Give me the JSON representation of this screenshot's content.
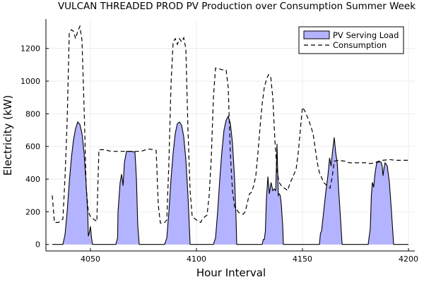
{
  "chart_data": {
    "type": "area",
    "title": "VULCAN THREADED PROD PV Production over Consumption Summer Week",
    "xlabel": "Hour Interval",
    "ylabel": "Electricity (kW)",
    "xlim": [
      4029,
      4203
    ],
    "ylim": [
      -40,
      1380
    ],
    "x_ticks": [
      4050,
      4100,
      4150,
      4200
    ],
    "y_ticks": [
      0,
      200,
      400,
      600,
      800,
      1000,
      1200
    ],
    "grid": true,
    "legend_position": "top-right",
    "series": [
      {
        "name": "PV Serving Load",
        "style": "filled-area",
        "fill_color": "#b3b3ff",
        "line_color": "#000000",
        "points": [
          [
            4032,
            0
          ],
          [
            4037,
            0
          ],
          [
            4038,
            60
          ],
          [
            4039,
            200
          ],
          [
            4040,
            380
          ],
          [
            4041,
            530
          ],
          [
            4042,
            640
          ],
          [
            4043,
            710
          ],
          [
            4044,
            750
          ],
          [
            4045,
            735
          ],
          [
            4046,
            680
          ],
          [
            4047,
            560
          ],
          [
            4048,
            360
          ],
          [
            4048.7,
            200
          ],
          [
            4049,
            50
          ],
          [
            4049.6,
            80
          ],
          [
            4050,
            110
          ],
          [
            4050.5,
            40
          ],
          [
            4051,
            0
          ],
          [
            4062,
            0
          ],
          [
            4062.8,
            40
          ],
          [
            4063,
            200
          ],
          [
            4064,
            380
          ],
          [
            4064.7,
            430
          ],
          [
            4065.4,
            360
          ],
          [
            4066,
            500
          ],
          [
            4067,
            570
          ],
          [
            4068,
            570
          ],
          [
            4069,
            570
          ],
          [
            4070,
            568
          ],
          [
            4071,
            565
          ],
          [
            4071.7,
            400
          ],
          [
            4072.3,
            120
          ],
          [
            4073,
            0
          ],
          [
            4085,
            0
          ],
          [
            4086,
            40
          ],
          [
            4087,
            200
          ],
          [
            4088,
            400
          ],
          [
            4089,
            560
          ],
          [
            4090,
            680
          ],
          [
            4091,
            740
          ],
          [
            4092,
            750
          ],
          [
            4093,
            730
          ],
          [
            4094,
            660
          ],
          [
            4095,
            520
          ],
          [
            4096,
            300
          ],
          [
            4096.7,
            100
          ],
          [
            4097,
            0
          ],
          [
            4108,
            0
          ],
          [
            4109,
            40
          ],
          [
            4110,
            200
          ],
          [
            4111,
            400
          ],
          [
            4112,
            570
          ],
          [
            4113,
            700
          ],
          [
            4114,
            760
          ],
          [
            4115,
            785
          ],
          [
            4116,
            740
          ],
          [
            4117,
            620
          ],
          [
            4118,
            400
          ],
          [
            4118.7,
            150
          ],
          [
            4119,
            0
          ],
          [
            4131,
            0
          ],
          [
            4131.5,
            30
          ],
          [
            4132,
            30
          ],
          [
            4132.5,
            80
          ],
          [
            4133,
            280
          ],
          [
            4133.7,
            415
          ],
          [
            4134.4,
            310
          ],
          [
            4135.2,
            380
          ],
          [
            4136,
            330
          ],
          [
            4136.7,
            340
          ],
          [
            4137.4,
            330
          ],
          [
            4138,
            615
          ],
          [
            4138.6,
            300
          ],
          [
            4139,
            310
          ],
          [
            4139.5,
            300
          ],
          [
            4140,
            250
          ],
          [
            4140.7,
            110
          ],
          [
            4141,
            0
          ],
          [
            4158,
            0
          ],
          [
            4158.5,
            70
          ],
          [
            4159,
            80
          ],
          [
            4160,
            200
          ],
          [
            4161,
            320
          ],
          [
            4162,
            420
          ],
          [
            4162.8,
            530
          ],
          [
            4163.5,
            480
          ],
          [
            4164.2,
            570
          ],
          [
            4165,
            655
          ],
          [
            4165.7,
            560
          ],
          [
            4166.4,
            500
          ],
          [
            4167,
            350
          ],
          [
            4168,
            150
          ],
          [
            4168.7,
            0
          ],
          [
            4181,
            0
          ],
          [
            4182,
            100
          ],
          [
            4182.5,
            300
          ],
          [
            4183,
            380
          ],
          [
            4183.6,
            350
          ],
          [
            4184.2,
            430
          ],
          [
            4185,
            500
          ],
          [
            4186,
            505
          ],
          [
            4187,
            505
          ],
          [
            4187.6,
            480
          ],
          [
            4188,
            420
          ],
          [
            4188.5,
            470
          ],
          [
            4189,
            500
          ],
          [
            4190,
            480
          ],
          [
            4191,
            380
          ],
          [
            4192,
            200
          ],
          [
            4193,
            0
          ],
          [
            4200,
            0
          ]
        ]
      },
      {
        "name": "Consumption",
        "style": "dashed-line",
        "line_color": "#000000",
        "points": [
          [
            4032,
            300
          ],
          [
            4033,
            135
          ],
          [
            4035,
            135
          ],
          [
            4037,
            155
          ],
          [
            4038,
            410
          ],
          [
            4039,
            750
          ],
          [
            4040,
            1290
          ],
          [
            4041,
            1315
          ],
          [
            4042,
            1305
          ],
          [
            4043,
            1260
          ],
          [
            4044,
            1305
          ],
          [
            4045,
            1335
          ],
          [
            4046,
            1250
          ],
          [
            4047,
            840
          ],
          [
            4048,
            350
          ],
          [
            4049,
            200
          ],
          [
            4050,
            170
          ],
          [
            4052,
            150
          ],
          [
            4053,
            140
          ],
          [
            4054,
            580
          ],
          [
            4055,
            580
          ],
          [
            4057,
            580
          ],
          [
            4058,
            575
          ],
          [
            4060,
            570
          ],
          [
            4065,
            570
          ],
          [
            4070,
            570
          ],
          [
            4074,
            570
          ],
          [
            4076,
            580
          ],
          [
            4077,
            585
          ],
          [
            4080,
            580
          ],
          [
            4081,
            575
          ],
          [
            4082,
            240
          ],
          [
            4083,
            130
          ],
          [
            4085,
            135
          ],
          [
            4086,
            150
          ],
          [
            4087,
            500
          ],
          [
            4088,
            980
          ],
          [
            4089,
            1240
          ],
          [
            4090,
            1260
          ],
          [
            4091,
            1225
          ],
          [
            4092,
            1260
          ],
          [
            4093,
            1240
          ],
          [
            4094,
            1265
          ],
          [
            4095,
            1200
          ],
          [
            4096,
            700
          ],
          [
            4097,
            330
          ],
          [
            4098,
            170
          ],
          [
            4100,
            150
          ],
          [
            4102,
            135
          ],
          [
            4103,
            160
          ],
          [
            4105,
            180
          ],
          [
            4106,
            300
          ],
          [
            4107,
            530
          ],
          [
            4108,
            900
          ],
          [
            4109,
            1080
          ],
          [
            4110,
            1078
          ],
          [
            4112,
            1070
          ],
          [
            4114,
            1068
          ],
          [
            4115,
            960
          ],
          [
            4116,
            550
          ],
          [
            4117,
            330
          ],
          [
            4118,
            230
          ],
          [
            4120,
            195
          ],
          [
            4122,
            185
          ],
          [
            4123,
            200
          ],
          [
            4125,
            310
          ],
          [
            4126,
            320
          ],
          [
            4127,
            360
          ],
          [
            4128,
            420
          ],
          [
            4129,
            560
          ],
          [
            4130,
            720
          ],
          [
            4131,
            860
          ],
          [
            4132,
            960
          ],
          [
            4133,
            1010
          ],
          [
            4134,
            1040
          ],
          [
            4135,
            1030
          ],
          [
            4136,
            900
          ],
          [
            4137,
            640
          ],
          [
            4138,
            450
          ],
          [
            4139,
            380
          ],
          [
            4140,
            360
          ],
          [
            4142,
            340
          ],
          [
            4143,
            330
          ],
          [
            4144,
            370
          ],
          [
            4145,
            400
          ],
          [
            4146,
            430
          ],
          [
            4147,
            460
          ],
          [
            4148,
            560
          ],
          [
            4149,
            700
          ],
          [
            4150,
            840
          ],
          [
            4151,
            820
          ],
          [
            4152,
            790
          ],
          [
            4153,
            760
          ],
          [
            4154,
            720
          ],
          [
            4155,
            680
          ],
          [
            4156,
            590
          ],
          [
            4157,
            500
          ],
          [
            4158,
            440
          ],
          [
            4159,
            410
          ],
          [
            4160,
            380
          ],
          [
            4162,
            355
          ],
          [
            4163,
            345
          ],
          [
            4164,
            410
          ],
          [
            4165,
            510
          ],
          [
            4167,
            515
          ],
          [
            4170,
            510
          ],
          [
            4172,
            500
          ],
          [
            4175,
            500
          ],
          [
            4180,
            500
          ],
          [
            4182,
            495
          ],
          [
            4184,
            500
          ],
          [
            4186,
            510
          ],
          [
            4188,
            515
          ],
          [
            4191,
            520
          ],
          [
            4194,
            515
          ],
          [
            4197,
            515
          ],
          [
            4200,
            515
          ]
        ]
      }
    ]
  }
}
